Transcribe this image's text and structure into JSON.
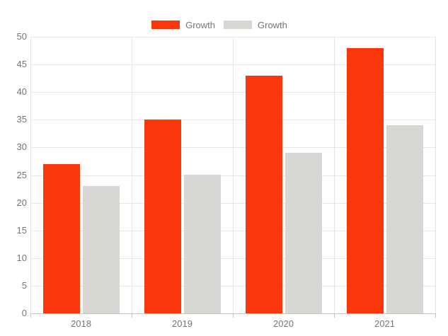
{
  "chart_data": {
    "type": "bar",
    "title": "",
    "categories": [
      "2018",
      "2019",
      "2020",
      "2021"
    ],
    "series": [
      {
        "name": "Growth",
        "color": "#fb370c",
        "values": [
          27,
          35,
          43,
          48
        ]
      },
      {
        "name": "Growth",
        "color": "#d8d7d4",
        "values": [
          23,
          25,
          29,
          34
        ]
      }
    ],
    "xlabel": "",
    "ylabel": "",
    "ylim": [
      0,
      50
    ],
    "yticks": [
      0,
      5,
      10,
      15,
      20,
      25,
      30,
      35,
      40,
      45,
      50
    ],
    "grid": true,
    "legend_position": "top"
  },
  "legend": {
    "items": [
      {
        "label": "Growth",
        "color": "#fb370c"
      },
      {
        "label": "Growth",
        "color": "#d8d7d4"
      }
    ]
  },
  "colors": {
    "gridline": "#e6e6e6",
    "axis_line": "#c4c4c4",
    "axis_text": "#757575",
    "background": "#ffffff"
  }
}
